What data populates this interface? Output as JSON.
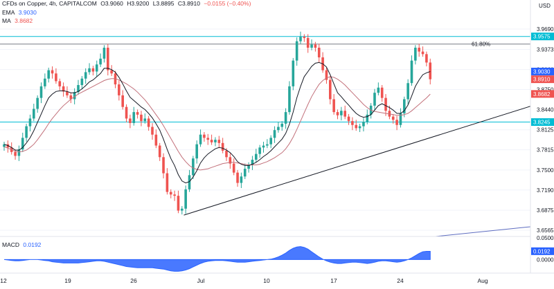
{
  "header": {
    "symbol_title": "CFDs on Copper, 4h, CAPITALCOM",
    "ohlc": [
      "O3.9060",
      "H3.9200",
      "L3.8895",
      "C3.8910",
      "−0.0155 (−0.40%)"
    ],
    "currency": "USD"
  },
  "indicators": {
    "ema_label": "EMA",
    "ema_value": "3.9030",
    "ma_label": "MA",
    "ma_value": "3.8682",
    "macd_label": "MACD",
    "macd_value": "0.0192"
  },
  "colors": {
    "up": "#26a69a",
    "down": "#ef5350",
    "ema": "#131722",
    "ma": "#c2707a",
    "level": "#00bcd4",
    "fib": "#787b86",
    "trend": "#131722",
    "macd_fill": "#2962ff",
    "macd_fill_light": "#2962ff",
    "axis_text": "#131722",
    "ema_badge": "#2962ff",
    "close_badge": "#ef5350",
    "ma_badge": "#ef5350"
  },
  "fib_label": "61.80%",
  "chart_data": [
    {
      "type": "candlestick",
      "title": "CFDs on Copper, 4h, CAPITALCOM",
      "x_ticks": [
        "12",
        "19",
        "26",
        "Jul",
        "10",
        "17",
        "24",
        "Aug"
      ],
      "y_ticks": [
        "3.9690",
        "3.9373",
        "3.9060",
        "3.8750",
        "3.8440",
        "3.8125",
        "3.7815",
        "3.7500",
        "3.7190",
        "3.6875",
        "3.6565"
      ],
      "ylim": [
        3.6565,
        3.969
      ],
      "price_badges": [
        {
          "name": "level",
          "value": 3.9575,
          "label": "3.9575"
        },
        {
          "name": "ema",
          "value": 3.903,
          "label": "3.9030"
        },
        {
          "name": "close",
          "value": 3.891,
          "label": "3.8910"
        },
        {
          "name": "ma",
          "value": 3.8682,
          "label": "3.8682"
        },
        {
          "name": "support",
          "value": 3.8245,
          "label": "3.8245"
        }
      ],
      "horizontal_lines": [
        {
          "name": "resistance",
          "value": 3.9575
        },
        {
          "name": "fib",
          "value": 3.9457,
          "label": "61.80%"
        },
        {
          "name": "support",
          "value": 3.8245
        }
      ],
      "trendline": [
        [
          0.5,
          3.68
        ],
        [
          129,
          3.849
        ]
      ],
      "closes": [
        3.79,
        3.785,
        3.778,
        3.772,
        3.782,
        3.8,
        3.818,
        3.83,
        3.845,
        3.862,
        3.88,
        3.892,
        3.905,
        3.9,
        3.888,
        3.88,
        3.872,
        3.866,
        3.86,
        3.871,
        3.882,
        3.892,
        3.902,
        3.908,
        3.903,
        3.914,
        3.923,
        3.94,
        3.905,
        3.9,
        3.883,
        3.866,
        3.848,
        3.83,
        3.823,
        3.84,
        3.836,
        3.826,
        3.83,
        3.817,
        3.805,
        3.788,
        3.77,
        3.745,
        3.716,
        3.712,
        3.71,
        3.687,
        3.69,
        3.72,
        3.742,
        3.768,
        3.79,
        3.805,
        3.8,
        3.797,
        3.793,
        3.797,
        3.792,
        3.78,
        3.77,
        3.76,
        3.746,
        3.73,
        3.74,
        3.752,
        3.758,
        3.766,
        3.775,
        3.785,
        3.788,
        3.79,
        3.8,
        3.812,
        3.817,
        3.822,
        3.84,
        3.88,
        3.92,
        3.95,
        3.957,
        3.955,
        3.94,
        3.945,
        3.94,
        3.925,
        3.905,
        3.89,
        3.86,
        3.84,
        3.835,
        3.842,
        3.833,
        3.826,
        3.82,
        3.815,
        3.818,
        3.825,
        3.836,
        3.85,
        3.87,
        3.878,
        3.862,
        3.842,
        3.833,
        3.828,
        3.82,
        3.838,
        3.86,
        3.885,
        3.92,
        3.94,
        3.934,
        3.93,
        3.917,
        3.891
      ],
      "ema_values": [
        3.79,
        3.788,
        3.785,
        3.781,
        3.781,
        3.785,
        3.792,
        3.8,
        3.811,
        3.824,
        3.837,
        3.85,
        3.862,
        3.868,
        3.872,
        3.873,
        3.873,
        3.872,
        3.87,
        3.87,
        3.872,
        3.876,
        3.881,
        3.887,
        3.89,
        3.895,
        3.9,
        3.908,
        3.908,
        3.906,
        3.902,
        3.894,
        3.884,
        3.873,
        3.863,
        3.858,
        3.853,
        3.848,
        3.844,
        3.838,
        3.831,
        3.822,
        3.812,
        3.798,
        3.782,
        3.768,
        3.757,
        3.743,
        3.733,
        3.73,
        3.732,
        3.739,
        3.749,
        3.761,
        3.769,
        3.775,
        3.779,
        3.783,
        3.785,
        3.784,
        3.781,
        3.777,
        3.771,
        3.763,
        3.759,
        3.757,
        3.757,
        3.759,
        3.762,
        3.766,
        3.771,
        3.775,
        3.78,
        3.786,
        3.792,
        3.798,
        3.807,
        3.821,
        3.84,
        3.862,
        3.88,
        3.895,
        3.903,
        3.911,
        3.916,
        3.917,
        3.915,
        3.91,
        3.898,
        3.884,
        3.87,
        3.864,
        3.857,
        3.851,
        3.844,
        3.838,
        3.834,
        3.832,
        3.833,
        3.836,
        3.843,
        3.85,
        3.853,
        3.85,
        3.847,
        3.843,
        3.838,
        3.838,
        3.842,
        3.851,
        3.865,
        3.88,
        3.89,
        3.898,
        3.901,
        3.903
      ],
      "ma_values": [
        3.786,
        3.784,
        3.782,
        3.779,
        3.778,
        3.779,
        3.781,
        3.785,
        3.79,
        3.797,
        3.805,
        3.813,
        3.822,
        3.83,
        3.837,
        3.844,
        3.85,
        3.855,
        3.86,
        3.864,
        3.868,
        3.871,
        3.874,
        3.877,
        3.88,
        3.883,
        3.886,
        3.889,
        3.891,
        3.892,
        3.892,
        3.89,
        3.887,
        3.884,
        3.88,
        3.876,
        3.871,
        3.865,
        3.859,
        3.852,
        3.844,
        3.836,
        3.828,
        3.819,
        3.809,
        3.799,
        3.789,
        3.779,
        3.77,
        3.763,
        3.757,
        3.753,
        3.751,
        3.75,
        3.751,
        3.752,
        3.754,
        3.756,
        3.758,
        3.76,
        3.761,
        3.762,
        3.762,
        3.761,
        3.76,
        3.759,
        3.758,
        3.758,
        3.758,
        3.759,
        3.761,
        3.763,
        3.766,
        3.769,
        3.773,
        3.777,
        3.783,
        3.791,
        3.801,
        3.813,
        3.826,
        3.839,
        3.852,
        3.864,
        3.874,
        3.883,
        3.889,
        3.893,
        3.895,
        3.894,
        3.891,
        3.887,
        3.882,
        3.876,
        3.87,
        3.864,
        3.858,
        3.852,
        3.847,
        3.843,
        3.841,
        3.84,
        3.839,
        3.838,
        3.837,
        3.836,
        3.835,
        3.835,
        3.836,
        3.838,
        3.842,
        3.847,
        3.852,
        3.857,
        3.862,
        3.868
      ]
    },
    {
      "type": "area",
      "title": "MACD",
      "y_ticks": [
        "0.0500",
        "0.0192",
        "0.0000"
      ],
      "ylim": [
        -0.028,
        0.05
      ],
      "values": [
        0.0,
        -0.001,
        -0.002,
        -0.003,
        -0.003,
        -0.002,
        -0.001,
        0.0,
        0.0,
        0.0,
        -0.001,
        -0.002,
        -0.003,
        -0.005,
        -0.006,
        -0.007,
        -0.008,
        -0.008,
        -0.008,
        -0.008,
        -0.008,
        -0.007,
        -0.006,
        -0.005,
        -0.004,
        -0.003,
        -0.003,
        -0.004,
        -0.006,
        -0.008,
        -0.01,
        -0.012,
        -0.014,
        -0.016,
        -0.017,
        -0.018,
        -0.019,
        -0.019,
        -0.019,
        -0.019,
        -0.019,
        -0.02,
        -0.021,
        -0.022,
        -0.024,
        -0.026,
        -0.027,
        -0.027,
        -0.026,
        -0.024,
        -0.021,
        -0.017,
        -0.013,
        -0.009,
        -0.006,
        -0.004,
        -0.003,
        -0.002,
        -0.002,
        -0.002,
        -0.003,
        -0.004,
        -0.005,
        -0.006,
        -0.006,
        -0.006,
        -0.005,
        -0.004,
        -0.003,
        -0.002,
        -0.001,
        0.0,
        0.001,
        0.003,
        0.006,
        0.01,
        0.015,
        0.021,
        0.026,
        0.029,
        0.03,
        0.028,
        0.024,
        0.018,
        0.012,
        0.006,
        0.001,
        -0.003,
        -0.006,
        -0.008,
        -0.009,
        -0.009,
        -0.008,
        -0.007,
        -0.006,
        -0.006,
        -0.007,
        -0.008,
        -0.009,
        -0.008,
        -0.006,
        -0.004,
        -0.003,
        -0.003,
        -0.004,
        -0.005,
        -0.006,
        -0.005,
        -0.003,
        0.0,
        0.004,
        0.009,
        0.014,
        0.018,
        0.019,
        0.019
      ]
    }
  ]
}
